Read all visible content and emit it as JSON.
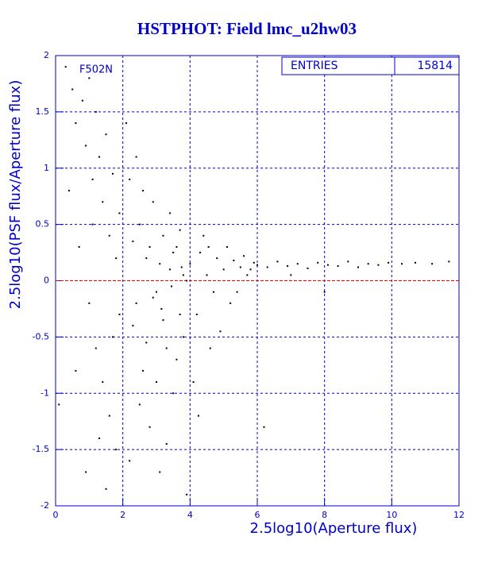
{
  "chart_data": {
    "type": "scatter",
    "title": "HSTPHOT: Field lmc_u2hw03",
    "annotation": "F502N",
    "xlabel": "2.5log10(Aperture flux)",
    "ylabel": "2.5log10(PSF flux/Aperture flux)",
    "stats": {
      "label": "ENTRIES",
      "value": 15814
    },
    "xlim": [
      0,
      12
    ],
    "ylim": [
      -2,
      2
    ],
    "xticks": [
      0,
      2,
      4,
      6,
      8,
      10,
      12
    ],
    "yticks": [
      -2,
      -1.5,
      -1,
      -0.5,
      0,
      0.5,
      1,
      1.5,
      2
    ],
    "grid": true,
    "color": "#000000",
    "reference_line": 0,
    "reference_color": "#ff0000",
    "grid_color": "#0000cc",
    "x": [
      0.3,
      0.5,
      0.6,
      0.8,
      0.9,
      1.0,
      1.1,
      1.2,
      1.3,
      1.4,
      1.5,
      1.6,
      1.7,
      1.8,
      1.9,
      0.4,
      0.7,
      1.0,
      1.2,
      1.4,
      1.6,
      1.8,
      0.9,
      1.5,
      0.1,
      0.6,
      1.1,
      1.3,
      1.7,
      1.9,
      2.1,
      2.2,
      2.3,
      2.4,
      2.5,
      2.6,
      2.7,
      2.8,
      2.9,
      3.0,
      3.1,
      3.2,
      3.3,
      3.4,
      3.5,
      3.6,
      3.7,
      3.8,
      3.9,
      2.2,
      2.4,
      2.6,
      2.8,
      3.0,
      3.2,
      3.4,
      3.6,
      3.8,
      2.5,
      2.7,
      2.9,
      3.1,
      3.3,
      3.5,
      3.7,
      3.9,
      2.3,
      3.15,
      3.45,
      3.75,
      4.0,
      4.2,
      4.3,
      4.5,
      4.6,
      4.8,
      5.0,
      5.2,
      5.3,
      5.5,
      5.7,
      5.9,
      4.1,
      4.4,
      4.7,
      4.9,
      5.1,
      5.4,
      5.6,
      5.8,
      4.25,
      4.55,
      6.2,
      6.0,
      6.3,
      6.6,
      6.9,
      7.2,
      7.5,
      7.8,
      8.1,
      8.4,
      8.7,
      9.0,
      9.3,
      9.6,
      9.9,
      10.3,
      10.7,
      11.2,
      11.7,
      7.0,
      8.0
    ],
    "values": [
      1.9,
      1.7,
      1.4,
      1.6,
      1.2,
      1.8,
      0.9,
      1.5,
      1.1,
      0.7,
      1.3,
      0.4,
      0.95,
      0.2,
      -0.3,
      0.8,
      0.3,
      -0.2,
      -0.6,
      -0.9,
      -1.2,
      -1.5,
      -1.7,
      -1.85,
      -1.1,
      -0.8,
      0.5,
      -1.4,
      -0.5,
      0.6,
      1.4,
      0.9,
      -0.4,
      1.1,
      0.5,
      -0.8,
      0.2,
      -1.3,
      0.7,
      -0.1,
      -1.7,
      0.4,
      -0.6,
      0.1,
      -1.0,
      0.3,
      -0.3,
      0.05,
      -1.9,
      -1.6,
      -0.2,
      0.8,
      0.3,
      -0.9,
      -0.35,
      0.6,
      -0.7,
      -0.5,
      -1.1,
      -0.55,
      -0.15,
      0.15,
      -1.45,
      0.25,
      0.45,
      0.0,
      0.35,
      -0.25,
      -0.05,
      0.12,
      0.15,
      -0.3,
      0.25,
      0.05,
      -0.6,
      0.2,
      0.1,
      -0.2,
      0.18,
      0.12,
      0.05,
      0.16,
      -0.9,
      0.4,
      -0.1,
      -0.45,
      0.3,
      -0.1,
      0.22,
      0.1,
      -1.2,
      0.3,
      -1.3,
      0.14,
      0.12,
      0.17,
      0.13,
      0.15,
      0.11,
      0.16,
      0.14,
      0.13,
      0.17,
      0.12,
      0.15,
      0.14,
      0.16,
      0.15,
      0.16,
      0.15,
      0.17,
      0.05,
      -0.1
    ]
  }
}
